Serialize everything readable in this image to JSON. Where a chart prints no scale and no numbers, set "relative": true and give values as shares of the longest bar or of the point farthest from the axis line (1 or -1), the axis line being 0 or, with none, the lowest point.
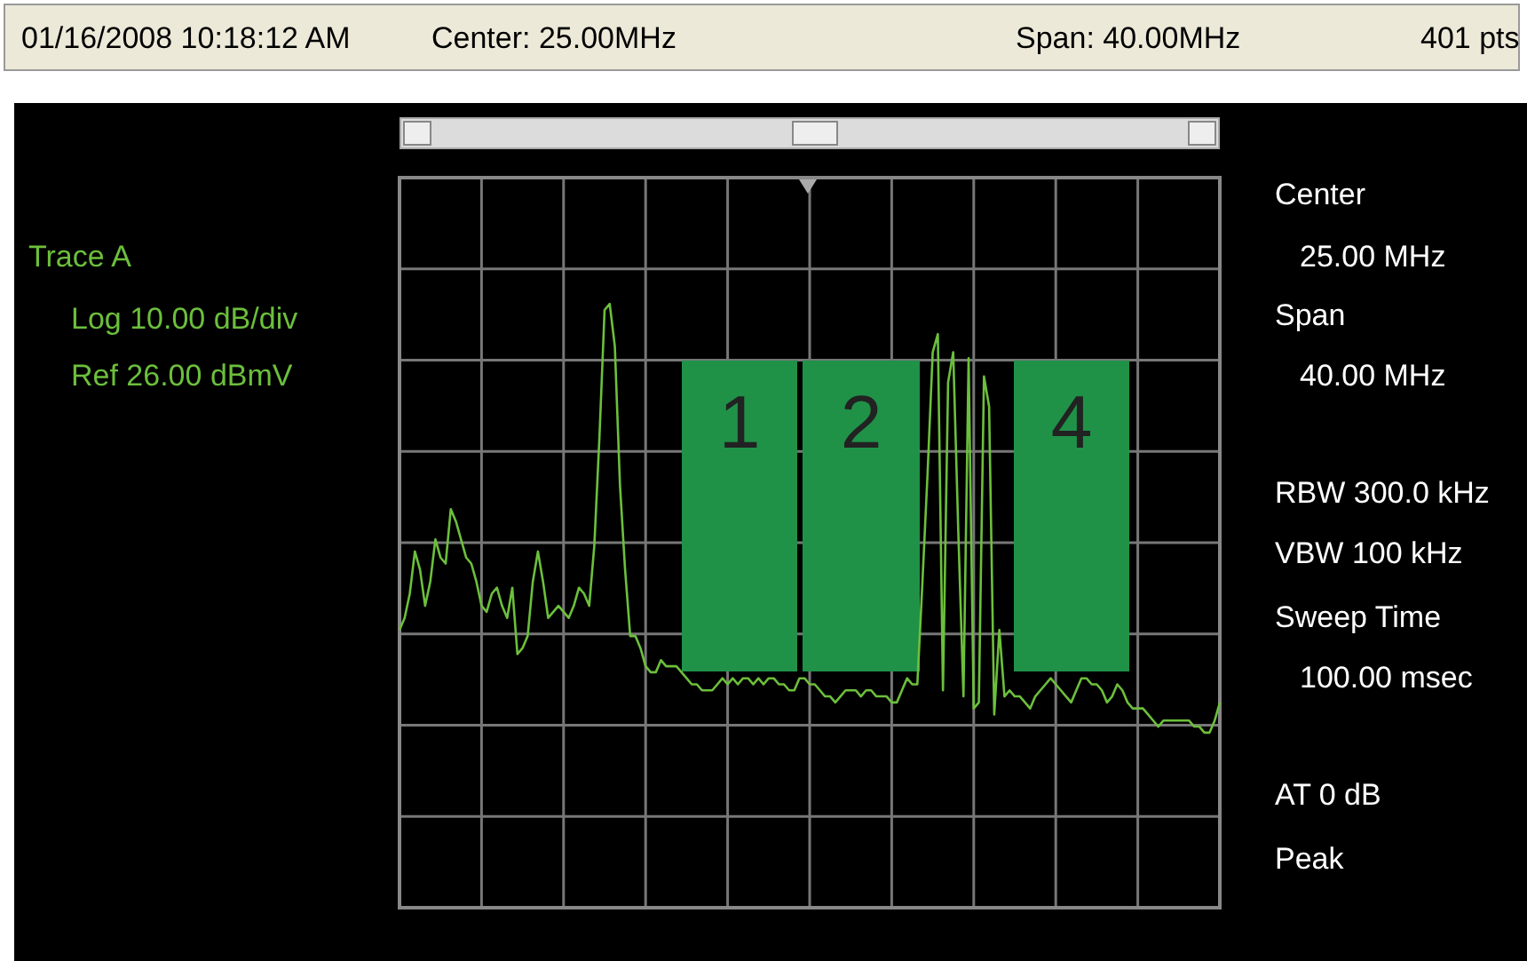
{
  "chart_data": {
    "type": "line",
    "relative": true,
    "grid": true,
    "tick_labels": false,
    "marker": "none",
    "line_style": "solid",
    "categories": [
      null,
      null,
      null,
      null,
      null,
      null,
      null,
      null,
      null,
      null,
      null,
      null,
      null,
      null,
      null,
      null,
      null,
      null,
      null,
      null,
      null,
      null,
      null,
      null,
      null,
      null,
      null,
      null,
      null,
      null,
      null,
      null,
      null,
      null,
      null,
      null,
      null,
      null,
      null,
      null,
      null,
      null,
      null,
      null,
      null,
      null,
      null,
      null,
      null,
      null,
      null,
      null,
      null,
      null,
      null,
      null,
      null,
      null,
      null,
      null,
      null,
      null,
      null,
      null,
      null,
      null,
      null,
      null,
      null,
      null,
      null,
      null,
      null,
      null,
      null,
      null,
      null,
      null,
      null,
      null,
      null,
      null,
      null,
      null,
      null,
      null,
      null,
      null,
      null,
      null,
      null,
      null,
      null,
      null,
      null,
      null,
      null,
      null,
      null,
      null,
      null,
      null,
      null,
      null,
      null,
      null,
      null,
      null,
      null,
      null,
      null,
      null,
      null,
      null,
      null,
      null,
      null,
      null,
      null,
      null,
      null,
      null,
      null,
      null,
      null,
      null,
      null,
      null,
      null,
      null,
      null,
      null,
      null,
      null,
      null,
      null,
      null,
      null,
      null,
      null,
      null,
      null,
      null,
      null,
      null,
      null,
      null,
      null,
      null,
      null,
      null,
      null,
      null,
      null,
      null,
      null,
      null,
      null,
      null,
      null,
      null
    ],
    "series": [
      {
        "color": "#6cbf3c",
        "values": [
          0.46,
          0.48,
          0.52,
          0.59,
          0.56,
          0.5,
          0.54,
          0.61,
          0.58,
          0.57,
          0.66,
          0.64,
          0.61,
          0.58,
          0.57,
          0.54,
          0.5,
          0.49,
          0.52,
          0.53,
          0.5,
          0.48,
          0.53,
          0.42,
          0.43,
          0.45,
          0.54,
          0.59,
          0.54,
          0.48,
          0.49,
          0.5,
          0.49,
          0.48,
          0.5,
          0.53,
          0.52,
          0.5,
          0.6,
          0.78,
          0.99,
          1.0,
          0.93,
          0.7,
          0.56,
          0.45,
          0.45,
          0.43,
          0.4,
          0.39,
          0.39,
          0.41,
          0.4,
          0.4,
          0.4,
          0.39,
          0.38,
          0.37,
          0.37,
          0.36,
          0.36,
          0.36,
          0.37,
          0.38,
          0.37,
          0.38,
          0.37,
          0.38,
          0.38,
          0.37,
          0.38,
          0.37,
          0.38,
          0.38,
          0.37,
          0.37,
          0.36,
          0.36,
          0.38,
          0.38,
          0.37,
          0.37,
          0.36,
          0.35,
          0.35,
          0.34,
          0.35,
          0.36,
          0.36,
          0.36,
          0.35,
          0.36,
          0.36,
          0.35,
          0.35,
          0.35,
          0.34,
          0.34,
          0.36,
          0.38,
          0.37,
          0.37,
          0.54,
          0.72,
          0.92,
          0.95,
          0.36,
          0.87,
          0.92,
          0.62,
          0.35,
          0.91,
          0.33,
          0.34,
          0.88,
          0.83,
          0.32,
          0.46,
          0.35,
          0.36,
          0.35,
          0.35,
          0.34,
          0.33,
          0.35,
          0.36,
          0.37,
          0.38,
          0.37,
          0.36,
          0.35,
          0.34,
          0.36,
          0.38,
          0.38,
          0.37,
          0.37,
          0.36,
          0.34,
          0.35,
          0.37,
          0.36,
          0.34,
          0.33,
          0.33,
          0.33,
          0.32,
          0.31,
          0.3,
          0.31,
          0.31,
          0.31,
          0.31,
          0.31,
          0.31,
          0.3,
          0.3,
          0.29,
          0.29,
          0.31,
          0.34
        ]
      }
    ],
    "annotations": [
      "01/16/2008 10:18:12 AM",
      "Center: 25.00MHz",
      "Span: 40.00MHz",
      "401 pts",
      "Trace A",
      "Log 10.00 dB/div",
      "Ref 26.00 dBmV",
      "Center",
      "25.00 MHz",
      "Span",
      "40.00 MHz",
      "RBW 300.0 kHz",
      "VBW 100 kHz",
      "Sweep Time",
      "100.00 msec",
      "AT 0 dB",
      "Peak",
      "1",
      "2",
      "4"
    ]
  }
}
